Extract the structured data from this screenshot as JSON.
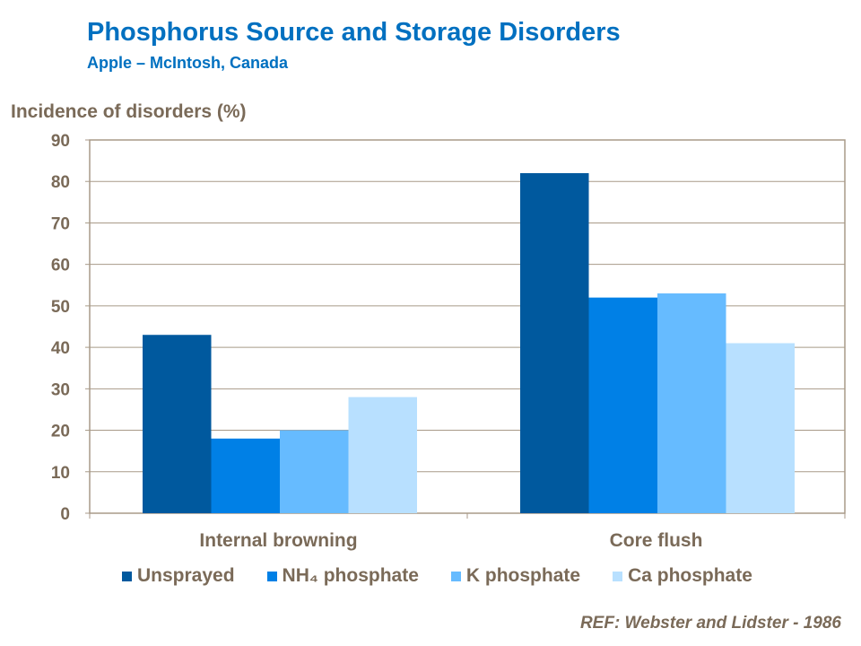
{
  "chart_data": {
    "type": "bar",
    "title": "Phosphorus Source and Storage Disorders",
    "subtitle": "Apple – McIntosh, Canada",
    "ylabel": "Incidence of disorders (%)",
    "xlabel": "",
    "ylim": [
      0,
      90
    ],
    "yticks": [
      0,
      10,
      20,
      30,
      40,
      50,
      60,
      70,
      80,
      90
    ],
    "grid": true,
    "legend_position": "bottom",
    "categories": [
      "Internal browning",
      "Core flush"
    ],
    "series": [
      {
        "name": "Unsprayed",
        "values": [
          43,
          82
        ],
        "color": "#00599e"
      },
      {
        "name": "NH₄ phosphate",
        "values": [
          18,
          52
        ],
        "color": "#0080e6"
      },
      {
        "name": "K phosphate",
        "values": [
          20,
          53
        ],
        "color": "#66bbff"
      },
      {
        "name": "Ca phosphate",
        "values": [
          28,
          41
        ],
        "color": "#b8e0ff"
      }
    ],
    "reference": "REF: Webster and Lidster - 1986"
  }
}
